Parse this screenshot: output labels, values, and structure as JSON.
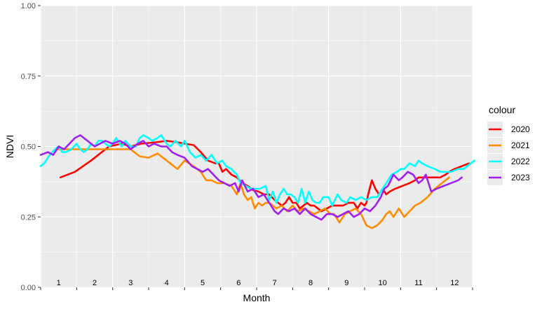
{
  "chart_data": {
    "type": "line",
    "xlabel": "Month",
    "ylabel": "NDVI",
    "ylim": [
      0,
      1
    ],
    "y_ticks": [
      "0.00",
      "0.25",
      "0.50",
      "0.75",
      "1.00"
    ],
    "y_tick_values": [
      0,
      0.25,
      0.5,
      0.75,
      1.0
    ],
    "xlim": [
      0.5,
      12.5
    ],
    "month_labels": [
      "1",
      "2",
      "3",
      "4",
      "5",
      "6",
      "7",
      "8",
      "9",
      "10",
      "11",
      "12"
    ],
    "legend_title": "colour",
    "legend_position": "right",
    "grid": true,
    "colors": {
      "panel": "#ebebeb",
      "grid": "#ffffff"
    },
    "series": [
      {
        "name": "2020",
        "color": "#ff0000",
        "x": [
          1.05,
          1.45,
          1.9,
          2.4,
          2.75,
          3.0,
          3.3,
          3.7,
          4.0,
          4.3,
          4.5,
          4.75,
          4.95,
          5.15,
          5.35,
          5.45,
          5.55,
          5.65,
          5.8,
          5.95,
          6.1,
          6.25,
          6.4,
          6.55,
          6.7,
          6.85,
          7.0,
          7.1,
          7.2,
          7.3,
          7.4,
          7.5,
          7.6,
          7.7,
          7.8,
          7.9,
          8.0,
          8.1,
          8.2,
          8.3,
          8.45,
          8.6,
          8.75,
          8.9,
          9.05,
          9.2,
          9.3,
          9.4,
          9.5,
          9.55,
          9.6,
          9.7,
          9.8,
          9.9,
          10.0,
          10.1,
          10.2,
          10.35,
          10.55,
          10.75,
          10.9,
          11.0,
          11.1,
          11.25,
          11.45,
          11.6,
          11.75,
          11.85,
          12.0,
          12.2,
          12.4
        ],
        "y": [
          0.39,
          0.41,
          0.45,
          0.5,
          0.51,
          0.5,
          0.51,
          0.515,
          0.52,
          0.515,
          0.51,
          0.505,
          0.48,
          0.45,
          0.44,
          0.44,
          0.41,
          0.42,
          0.4,
          0.39,
          0.37,
          0.36,
          0.345,
          0.34,
          0.33,
          0.33,
          0.31,
          0.3,
          0.29,
          0.3,
          0.32,
          0.3,
          0.3,
          0.28,
          0.29,
          0.3,
          0.29,
          0.29,
          0.28,
          0.27,
          0.28,
          0.29,
          0.29,
          0.29,
          0.3,
          0.3,
          0.28,
          0.3,
          0.29,
          0.3,
          0.33,
          0.38,
          0.35,
          0.33,
          0.35,
          0.33,
          0.34,
          0.35,
          0.36,
          0.37,
          0.38,
          0.39,
          0.39,
          0.39,
          0.39,
          0.39,
          0.4,
          0.41,
          0.42,
          0.43,
          0.44
        ]
      },
      {
        "name": "2021",
        "color": "#ff8c00",
        "x": [
          0.95,
          1.3,
          1.7,
          2.15,
          2.4,
          2.75,
          3.0,
          3.25,
          3.5,
          3.75,
          4.0,
          4.3,
          4.5,
          4.75,
          4.95,
          5.1,
          5.25,
          5.4,
          5.6,
          5.8,
          5.95,
          6.05,
          6.15,
          6.25,
          6.35,
          6.45,
          6.55,
          6.65,
          6.75,
          6.85,
          6.95,
          7.05,
          7.2,
          7.35,
          7.5,
          7.65,
          7.8,
          7.95,
          8.1,
          8.25,
          8.4,
          8.55,
          8.65,
          8.8,
          8.95,
          9.1,
          9.25,
          9.4,
          9.55,
          9.7,
          9.85,
          10.0,
          10.1,
          10.2,
          10.3,
          10.45,
          10.6,
          10.75,
          10.9,
          11.05,
          11.25,
          11.45,
          11.65,
          11.85
        ],
        "y": [
          0.49,
          0.49,
          0.49,
          0.49,
          0.49,
          0.49,
          0.49,
          0.465,
          0.46,
          0.475,
          0.45,
          0.42,
          0.45,
          0.43,
          0.41,
          0.38,
          0.38,
          0.37,
          0.37,
          0.36,
          0.33,
          0.37,
          0.33,
          0.31,
          0.32,
          0.28,
          0.3,
          0.29,
          0.3,
          0.3,
          0.29,
          0.28,
          0.29,
          0.27,
          0.29,
          0.27,
          0.28,
          0.27,
          0.26,
          0.27,
          0.28,
          0.26,
          0.26,
          0.23,
          0.26,
          0.27,
          0.28,
          0.26,
          0.22,
          0.21,
          0.22,
          0.24,
          0.26,
          0.27,
          0.25,
          0.28,
          0.25,
          0.27,
          0.29,
          0.3,
          0.32,
          0.35,
          0.37,
          0.39
        ]
      },
      {
        "name": "2022",
        "color": "#00ffff",
        "x": [
          0.5,
          0.6,
          0.75,
          0.9,
          1.0,
          1.1,
          1.2,
          1.35,
          1.5,
          1.6,
          1.7,
          1.8,
          1.9,
          2.0,
          2.1,
          2.2,
          2.3,
          2.4,
          2.5,
          2.6,
          2.75,
          2.85,
          3.0,
          3.15,
          3.25,
          3.35,
          3.5,
          3.6,
          3.75,
          3.85,
          4.0,
          4.1,
          4.25,
          4.4,
          4.5,
          4.65,
          4.8,
          4.95,
          5.1,
          5.25,
          5.4,
          5.55,
          5.65,
          5.8,
          5.95,
          6.05,
          6.2,
          6.35,
          6.5,
          6.6,
          6.75,
          6.85,
          6.95,
          7.05,
          7.15,
          7.25,
          7.35,
          7.45,
          7.55,
          7.65,
          7.75,
          7.85,
          7.95,
          8.05,
          8.15,
          8.25,
          8.35,
          8.5,
          8.6,
          8.75,
          8.85,
          9.0,
          9.1,
          9.25,
          9.4,
          9.55,
          9.7,
          9.85,
          10.0,
          10.1,
          10.25,
          10.4,
          10.5,
          10.6,
          10.75,
          10.9,
          11.0,
          11.1,
          11.25,
          11.45,
          11.6,
          11.75,
          11.9,
          12.1,
          12.25,
          12.35,
          12.45,
          12.55
        ],
        "y": [
          0.43,
          0.44,
          0.47,
          0.49,
          0.5,
          0.48,
          0.48,
          0.49,
          0.51,
          0.49,
          0.48,
          0.49,
          0.51,
          0.5,
          0.52,
          0.52,
          0.51,
          0.5,
          0.51,
          0.53,
          0.5,
          0.52,
          0.5,
          0.5,
          0.53,
          0.54,
          0.53,
          0.52,
          0.53,
          0.54,
          0.51,
          0.5,
          0.52,
          0.5,
          0.52,
          0.48,
          0.46,
          0.47,
          0.45,
          0.47,
          0.44,
          0.45,
          0.43,
          0.42,
          0.4,
          0.37,
          0.36,
          0.35,
          0.35,
          0.35,
          0.36,
          0.31,
          0.34,
          0.3,
          0.33,
          0.35,
          0.33,
          0.33,
          0.32,
          0.3,
          0.35,
          0.3,
          0.34,
          0.31,
          0.3,
          0.3,
          0.32,
          0.32,
          0.29,
          0.33,
          0.31,
          0.3,
          0.32,
          0.31,
          0.32,
          0.31,
          0.32,
          0.32,
          0.35,
          0.37,
          0.4,
          0.41,
          0.42,
          0.42,
          0.44,
          0.43,
          0.45,
          0.44,
          0.43,
          0.42,
          0.41,
          0.41,
          0.41,
          0.42,
          0.42,
          0.43,
          0.44,
          0.45
        ]
      },
      {
        "name": "2023",
        "color": "#a020f0",
        "x": [
          0.5,
          0.7,
          0.85,
          1.0,
          1.15,
          1.3,
          1.45,
          1.6,
          1.8,
          2.0,
          2.15,
          2.3,
          2.5,
          2.7,
          2.85,
          3.0,
          3.2,
          3.35,
          3.5,
          3.65,
          3.85,
          4.0,
          4.15,
          4.3,
          4.5,
          4.7,
          4.85,
          5.0,
          5.15,
          5.3,
          5.45,
          5.6,
          5.75,
          5.9,
          6.0,
          6.1,
          6.25,
          6.4,
          6.55,
          6.7,
          6.85,
          7.0,
          7.1,
          7.25,
          7.4,
          7.55,
          7.7,
          7.85,
          8.0,
          8.15,
          8.3,
          8.45,
          8.6,
          8.75,
          8.9,
          9.05,
          9.2,
          9.35,
          9.5,
          9.65,
          9.8,
          9.95,
          10.05,
          10.15,
          10.3,
          10.45,
          10.55,
          10.7,
          10.85,
          11.0,
          11.1,
          11.2,
          11.35,
          11.5,
          11.7,
          11.9,
          12.1,
          12.2
        ],
        "y": [
          0.47,
          0.48,
          0.47,
          0.5,
          0.49,
          0.51,
          0.53,
          0.54,
          0.52,
          0.5,
          0.51,
          0.52,
          0.51,
          0.52,
          0.51,
          0.49,
          0.51,
          0.52,
          0.5,
          0.51,
          0.5,
          0.5,
          0.48,
          0.47,
          0.46,
          0.43,
          0.42,
          0.41,
          0.42,
          0.4,
          0.38,
          0.37,
          0.36,
          0.37,
          0.34,
          0.38,
          0.34,
          0.35,
          0.32,
          0.33,
          0.3,
          0.27,
          0.26,
          0.28,
          0.27,
          0.28,
          0.26,
          0.28,
          0.26,
          0.25,
          0.24,
          0.26,
          0.26,
          0.25,
          0.26,
          0.27,
          0.25,
          0.26,
          0.28,
          0.27,
          0.29,
          0.32,
          0.35,
          0.36,
          0.4,
          0.38,
          0.39,
          0.41,
          0.4,
          0.37,
          0.38,
          0.4,
          0.34,
          0.35,
          0.36,
          0.37,
          0.38,
          0.39
        ]
      }
    ]
  }
}
